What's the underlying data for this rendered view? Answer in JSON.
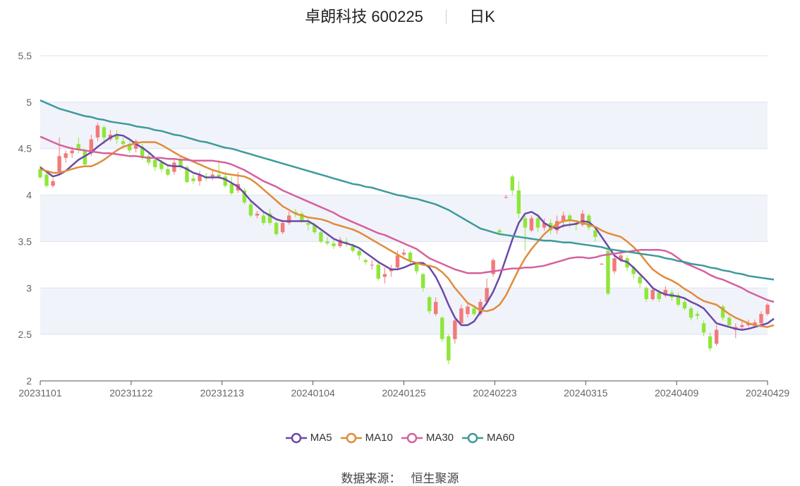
{
  "title": {
    "name": "卓朗科技",
    "code": "600225",
    "period": "日K"
  },
  "source": {
    "label": "数据来源：",
    "value": "恒生聚源"
  },
  "colors": {
    "up": "#f27a7a",
    "down": "#8fe63b",
    "band": "#f1f3fa",
    "grid": "#dde2ee",
    "axis": "#888888"
  },
  "chart_data": {
    "type": "candlestick",
    "title": "卓朗科技 600225  日K",
    "ylim": [
      2,
      5.5
    ],
    "y_ticks": [
      "2",
      "2.5",
      "3",
      "3.5",
      "4",
      "4.5",
      "5",
      "5.5"
    ],
    "x_ticks": [
      "20231101",
      "20231122",
      "20231213",
      "20240104",
      "20240125",
      "20240223",
      "20240315",
      "20240409",
      "20240429"
    ],
    "legend_position": "bottom",
    "grid": true,
    "ohlc": [
      [
        4.28,
        4.19,
        4.32,
        4.18
      ],
      [
        4.22,
        4.1,
        4.24,
        4.08
      ],
      [
        4.1,
        4.15,
        4.18,
        4.08
      ],
      [
        4.25,
        4.42,
        4.62,
        4.24
      ],
      [
        4.4,
        4.45,
        4.48,
        4.35
      ],
      [
        4.45,
        4.48,
        4.52,
        4.4
      ],
      [
        4.55,
        4.5,
        4.62,
        4.45
      ],
      [
        4.48,
        4.33,
        4.5,
        4.3
      ],
      [
        4.45,
        4.6,
        4.65,
        4.42
      ],
      [
        4.62,
        4.75,
        4.78,
        4.58
      ],
      [
        4.73,
        4.62,
        4.75,
        4.55
      ],
      [
        4.6,
        4.65,
        4.7,
        4.58
      ],
      [
        4.64,
        4.6,
        4.7,
        4.55
      ],
      [
        4.58,
        4.55,
        4.62,
        4.5
      ],
      [
        4.55,
        4.48,
        4.58,
        4.45
      ],
      [
        4.5,
        4.58,
        4.6,
        4.46
      ],
      [
        4.52,
        4.4,
        4.55,
        4.38
      ],
      [
        4.42,
        4.35,
        4.45,
        4.32
      ],
      [
        4.38,
        4.3,
        4.4,
        4.26
      ],
      [
        4.35,
        4.28,
        4.38,
        4.25
      ],
      [
        4.28,
        4.22,
        4.32,
        4.2
      ],
      [
        4.25,
        4.35,
        4.4,
        4.22
      ],
      [
        4.38,
        4.3,
        4.42,
        4.27
      ],
      [
        4.3,
        4.14,
        4.32,
        4.13
      ],
      [
        4.18,
        4.15,
        4.22,
        4.12
      ],
      [
        4.15,
        4.22,
        4.26,
        4.1
      ],
      [
        4.2,
        4.18,
        4.24,
        4.15
      ],
      [
        4.2,
        4.22,
        4.28,
        4.16
      ],
      [
        4.22,
        4.2,
        4.38,
        4.18
      ],
      [
        4.2,
        4.1,
        4.25,
        4.08
      ],
      [
        4.12,
        4.02,
        4.2,
        4.0
      ],
      [
        4.05,
        4.12,
        4.25,
        4.02
      ],
      [
        4.05,
        3.92,
        4.08,
        3.9
      ],
      [
        3.9,
        3.78,
        3.95,
        3.76
      ],
      [
        3.78,
        3.8,
        3.83,
        3.75
      ],
      [
        3.78,
        3.7,
        3.82,
        3.68
      ],
      [
        3.8,
        3.7,
        3.85,
        3.68
      ],
      [
        3.7,
        3.58,
        3.72,
        3.56
      ],
      [
        3.6,
        3.7,
        3.72,
        3.58
      ],
      [
        3.7,
        3.78,
        3.82,
        3.68
      ],
      [
        3.82,
        3.8,
        3.85,
        3.76
      ],
      [
        3.8,
        3.72,
        3.82,
        3.7
      ],
      [
        3.7,
        3.68,
        3.75,
        3.62
      ],
      [
        3.68,
        3.6,
        3.7,
        3.58
      ],
      [
        3.6,
        3.5,
        3.62,
        3.48
      ],
      [
        3.5,
        3.48,
        3.55,
        3.46
      ],
      [
        3.48,
        3.45,
        3.52,
        3.42
      ],
      [
        3.45,
        3.52,
        3.55,
        3.43
      ],
      [
        3.5,
        3.48,
        3.54,
        3.44
      ],
      [
        3.45,
        3.4,
        3.48,
        3.38
      ],
      [
        3.4,
        3.35,
        3.42,
        3.3
      ],
      [
        3.3,
        3.28,
        3.32,
        3.25
      ],
      [
        3.25,
        3.25,
        3.3,
        3.2
      ],
      [
        3.25,
        3.1,
        3.28,
        3.08
      ],
      [
        3.12,
        3.15,
        3.22,
        3.05
      ],
      [
        3.18,
        3.2,
        3.25,
        3.12
      ],
      [
        3.22,
        3.35,
        3.4,
        3.2
      ],
      [
        3.36,
        3.38,
        3.42,
        3.34
      ],
      [
        3.38,
        3.3,
        3.4,
        3.25
      ],
      [
        3.26,
        3.18,
        3.28,
        3.15
      ],
      [
        3.15,
        3.0,
        3.16,
        2.96
      ],
      [
        2.9,
        2.75,
        2.92,
        2.72
      ],
      [
        2.72,
        2.85,
        2.9,
        2.7
      ],
      [
        2.68,
        2.45,
        2.7,
        2.42
      ],
      [
        2.48,
        2.22,
        2.5,
        2.18
      ],
      [
        2.45,
        2.65,
        2.68,
        2.4
      ],
      [
        2.62,
        2.78,
        2.82,
        2.6
      ],
      [
        2.72,
        2.8,
        2.84,
        2.68
      ],
      [
        2.78,
        2.72,
        2.82,
        2.7
      ],
      [
        2.72,
        2.85,
        2.88,
        2.7
      ],
      [
        2.85,
        3.0,
        3.1,
        2.82
      ],
      [
        3.15,
        3.3,
        3.32,
        3.12
      ],
      [
        3.62,
        3.6,
        3.64,
        3.58
      ],
      [
        3.98,
        3.98,
        4.0,
        3.96
      ],
      [
        4.2,
        4.05,
        4.22,
        4.0
      ],
      [
        4.05,
        3.8,
        4.15,
        3.75
      ],
      [
        3.75,
        3.65,
        3.78,
        3.4
      ],
      [
        3.62,
        3.75,
        3.78,
        3.6
      ],
      [
        3.75,
        3.65,
        3.78,
        3.6
      ],
      [
        3.65,
        3.7,
        3.75,
        3.62
      ],
      [
        3.7,
        3.62,
        3.74,
        3.58
      ],
      [
        3.62,
        3.72,
        3.78,
        3.58
      ],
      [
        3.72,
        3.78,
        3.82,
        3.65
      ],
      [
        3.78,
        3.72,
        3.8,
        3.65
      ],
      [
        3.7,
        3.68,
        3.72,
        3.62
      ],
      [
        3.68,
        3.8,
        3.84,
        3.66
      ],
      [
        3.78,
        3.65,
        3.8,
        3.62
      ],
      [
        3.62,
        3.55,
        3.65,
        3.5
      ],
      [
        3.26,
        3.26,
        3.27,
        3.25
      ],
      [
        3.4,
        2.94,
        3.42,
        2.92
      ],
      [
        3.18,
        3.32,
        3.38,
        3.15
      ],
      [
        3.3,
        3.35,
        3.4,
        3.28
      ],
      [
        3.32,
        3.22,
        3.35,
        3.18
      ],
      [
        3.22,
        3.15,
        3.24,
        3.1
      ],
      [
        3.12,
        3.05,
        3.15,
        3.0
      ],
      [
        3.0,
        2.88,
        3.02,
        2.85
      ],
      [
        2.88,
        2.98,
        3.02,
        2.86
      ],
      [
        2.95,
        2.88,
        2.98,
        2.85
      ],
      [
        2.92,
        2.98,
        3.02,
        2.9
      ],
      [
        2.95,
        2.9,
        2.98,
        2.86
      ],
      [
        2.92,
        2.82,
        2.95,
        2.8
      ],
      [
        2.85,
        2.78,
        2.88,
        2.76
      ],
      [
        2.78,
        2.68,
        2.8,
        2.65
      ],
      [
        2.72,
        2.7,
        2.75,
        2.66
      ],
      [
        2.62,
        2.52,
        2.65,
        2.48
      ],
      [
        2.48,
        2.35,
        2.52,
        2.32
      ],
      [
        2.4,
        2.55,
        2.6,
        2.38
      ],
      [
        2.8,
        2.68,
        2.82,
        2.65
      ],
      [
        2.68,
        2.6,
        2.7,
        2.58
      ],
      [
        2.55,
        2.58,
        2.62,
        2.46
      ],
      [
        2.58,
        2.6,
        2.64,
        2.55
      ],
      [
        2.6,
        2.62,
        2.66,
        2.58
      ],
      [
        2.6,
        2.63,
        2.66,
        2.58
      ],
      [
        2.62,
        2.72,
        2.75,
        2.6
      ],
      [
        2.72,
        2.82,
        2.84,
        2.7
      ]
    ],
    "series": [
      {
        "name": "MA5",
        "color": "#6b49a8",
        "values": [
          4.3,
          4.25,
          4.2,
          4.22,
          4.26,
          4.32,
          4.38,
          4.42,
          4.46,
          4.52,
          4.57,
          4.62,
          4.65,
          4.64,
          4.6,
          4.55,
          4.51,
          4.46,
          4.4,
          4.36,
          4.32,
          4.31,
          4.31,
          4.28,
          4.24,
          4.22,
          4.19,
          4.19,
          4.19,
          4.17,
          4.13,
          4.09,
          4.02,
          3.94,
          3.88,
          3.82,
          3.78,
          3.74,
          3.72,
          3.72,
          3.72,
          3.72,
          3.72,
          3.68,
          3.63,
          3.58,
          3.53,
          3.5,
          3.48,
          3.46,
          3.43,
          3.38,
          3.33,
          3.28,
          3.24,
          3.2,
          3.2,
          3.22,
          3.25,
          3.27,
          3.27,
          3.22,
          3.12,
          2.98,
          2.82,
          2.68,
          2.6,
          2.6,
          2.64,
          2.74,
          2.84,
          2.96,
          3.12,
          3.32,
          3.52,
          3.7,
          3.8,
          3.82,
          3.78,
          3.7,
          3.66,
          3.64,
          3.67,
          3.68,
          3.69,
          3.72,
          3.71,
          3.65,
          3.55,
          3.45,
          3.35,
          3.3,
          3.28,
          3.22,
          3.15,
          3.08,
          3.0,
          2.96,
          2.93,
          2.92,
          2.91,
          2.89,
          2.85,
          2.82,
          2.78,
          2.7,
          2.62,
          2.6,
          2.58,
          2.56,
          2.55,
          2.56,
          2.58,
          2.6,
          2.62,
          2.67
        ]
      },
      {
        "name": "MA10",
        "color": "#e08c3a",
        "values": [
          4.28,
          4.26,
          4.24,
          4.24,
          4.26,
          4.28,
          4.3,
          4.31,
          4.31,
          4.34,
          4.38,
          4.43,
          4.48,
          4.52,
          4.54,
          4.56,
          4.57,
          4.57,
          4.57,
          4.54,
          4.5,
          4.46,
          4.42,
          4.39,
          4.36,
          4.33,
          4.3,
          4.27,
          4.25,
          4.23,
          4.22,
          4.21,
          4.2,
          4.17,
          4.12,
          4.06,
          4.0,
          3.94,
          3.88,
          3.84,
          3.8,
          3.78,
          3.76,
          3.75,
          3.74,
          3.72,
          3.69,
          3.67,
          3.65,
          3.63,
          3.6,
          3.56,
          3.52,
          3.48,
          3.44,
          3.4,
          3.36,
          3.32,
          3.29,
          3.27,
          3.25,
          3.24,
          3.22,
          3.17,
          3.1,
          3.0,
          2.92,
          2.84,
          2.8,
          2.76,
          2.75,
          2.77,
          2.82,
          2.92,
          3.06,
          3.2,
          3.32,
          3.42,
          3.5,
          3.58,
          3.64,
          3.69,
          3.72,
          3.73,
          3.72,
          3.7,
          3.68,
          3.66,
          3.62,
          3.59,
          3.57,
          3.55,
          3.5,
          3.44,
          3.37,
          3.28,
          3.2,
          3.15,
          3.11,
          3.08,
          3.04,
          2.99,
          2.95,
          2.9,
          2.86,
          2.84,
          2.82,
          2.77,
          2.72,
          2.68,
          2.65,
          2.62,
          2.6,
          2.59,
          2.58,
          2.6
        ]
      },
      {
        "name": "MA30",
        "color": "#d6609f",
        "values": [
          4.63,
          4.6,
          4.57,
          4.54,
          4.52,
          4.5,
          4.49,
          4.48,
          4.47,
          4.46,
          4.45,
          4.45,
          4.44,
          4.43,
          4.42,
          4.42,
          4.41,
          4.4,
          4.4,
          4.4,
          4.39,
          4.39,
          4.38,
          4.38,
          4.37,
          4.37,
          4.37,
          4.37,
          4.36,
          4.35,
          4.33,
          4.3,
          4.27,
          4.23,
          4.19,
          4.15,
          4.12,
          4.09,
          4.05,
          4.02,
          3.99,
          3.96,
          3.93,
          3.9,
          3.87,
          3.84,
          3.81,
          3.77,
          3.74,
          3.71,
          3.68,
          3.65,
          3.62,
          3.59,
          3.57,
          3.54,
          3.51,
          3.48,
          3.45,
          3.42,
          3.37,
          3.32,
          3.29,
          3.26,
          3.23,
          3.2,
          3.18,
          3.16,
          3.16,
          3.16,
          3.17,
          3.18,
          3.19,
          3.2,
          3.21,
          3.21,
          3.22,
          3.22,
          3.23,
          3.24,
          3.26,
          3.28,
          3.3,
          3.32,
          3.33,
          3.33,
          3.32,
          3.33,
          3.35,
          3.36,
          3.37,
          3.38,
          3.39,
          3.4,
          3.41,
          3.41,
          3.41,
          3.41,
          3.4,
          3.37,
          3.32,
          3.27,
          3.24,
          3.21,
          3.18,
          3.14,
          3.11,
          3.09,
          3.06,
          3.03,
          3.0,
          2.96,
          2.93,
          2.9,
          2.87,
          2.85
        ]
      },
      {
        "name": "MA60",
        "color": "#3e9a9a",
        "values": [
          5.02,
          4.99,
          4.96,
          4.93,
          4.91,
          4.89,
          4.87,
          4.85,
          4.84,
          4.82,
          4.81,
          4.79,
          4.78,
          4.77,
          4.76,
          4.74,
          4.73,
          4.72,
          4.7,
          4.69,
          4.67,
          4.65,
          4.64,
          4.62,
          4.6,
          4.58,
          4.57,
          4.55,
          4.53,
          4.51,
          4.5,
          4.48,
          4.46,
          4.44,
          4.42,
          4.4,
          4.38,
          4.36,
          4.34,
          4.32,
          4.3,
          4.28,
          4.26,
          4.24,
          4.22,
          4.2,
          4.18,
          4.16,
          4.14,
          4.12,
          4.11,
          4.09,
          4.08,
          4.06,
          4.04,
          4.02,
          4.0,
          3.99,
          3.97,
          3.96,
          3.94,
          3.92,
          3.9,
          3.87,
          3.84,
          3.8,
          3.76,
          3.72,
          3.68,
          3.64,
          3.62,
          3.6,
          3.58,
          3.57,
          3.56,
          3.55,
          3.54,
          3.53,
          3.52,
          3.51,
          3.51,
          3.5,
          3.49,
          3.49,
          3.48,
          3.47,
          3.46,
          3.45,
          3.44,
          3.42,
          3.41,
          3.4,
          3.39,
          3.38,
          3.37,
          3.36,
          3.35,
          3.34,
          3.32,
          3.31,
          3.29,
          3.28,
          3.26,
          3.25,
          3.24,
          3.22,
          3.21,
          3.19,
          3.18,
          3.16,
          3.15,
          3.13,
          3.12,
          3.11,
          3.1,
          3.09
        ]
      }
    ]
  }
}
